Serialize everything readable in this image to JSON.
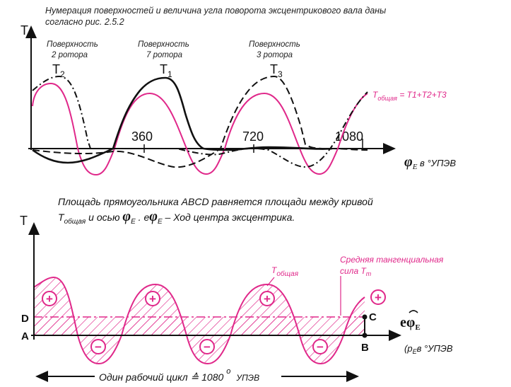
{
  "top": {
    "note_line1": "Нумерация поверхностей и величина угла поворота эксцентрикового вала даны",
    "note_line2": "согласно рис. 2.5.2",
    "y_axis": "T",
    "surf1_line1": "Поверхность",
    "surf1_line2": "2 ротора",
    "surf2_line1": "Поверхность",
    "surf2_line2": "7 ротора",
    "surf3_line1": "Поверхность",
    "surf3_line2": "3 ротора",
    "t2": "T",
    "t2_sub": "2",
    "t1": "T",
    "t1_sub": "1",
    "t3": "T",
    "t3_sub": "3",
    "tick1": "360",
    "tick2": "720",
    "tick3": "1080",
    "total_label": "T",
    "total_sub": "общая",
    "total_formula": " = T1+T2+T3",
    "x_phi": "φ",
    "x_sub": "E",
    "x_unit": " в °УПЭВ"
  },
  "bottom": {
    "note_line1": "Площадь прямоугольника ABCD равняется площади между кривой",
    "note_line2a": "T",
    "note_line2a_sub": "общая",
    "note_line2b": " и осью ",
    "note_line2c": "φ",
    "note_line2c_sub": "E",
    "note_line2d": " . e",
    "note_line2e": "φ",
    "note_line2e_sub": "E",
    "note_line2f": " –  Ход центра эксцентрика.",
    "y_axis": "T",
    "pt_a": "A",
    "pt_b": "B",
    "pt_c": "C",
    "pt_d": "D",
    "total_label": "T",
    "total_sub": "общая",
    "mean_line1": "Средняя тангенциальная",
    "mean_line2": "сила T",
    "mean_sub": "m",
    "e_phi": "eφ",
    "e_sub": "E",
    "x_unit_a": "(p",
    "x_unit_sub": "E",
    "x_unit_b": "в °УПЭВ",
    "cycle_text": "Один рабочий цикл ≙ 1080",
    "cycle_deg": "o",
    "cycle_unit": "УПЭВ",
    "plus": "+",
    "minus": "−"
  },
  "colors": {
    "pink": "#e0288a",
    "black": "#111111"
  }
}
